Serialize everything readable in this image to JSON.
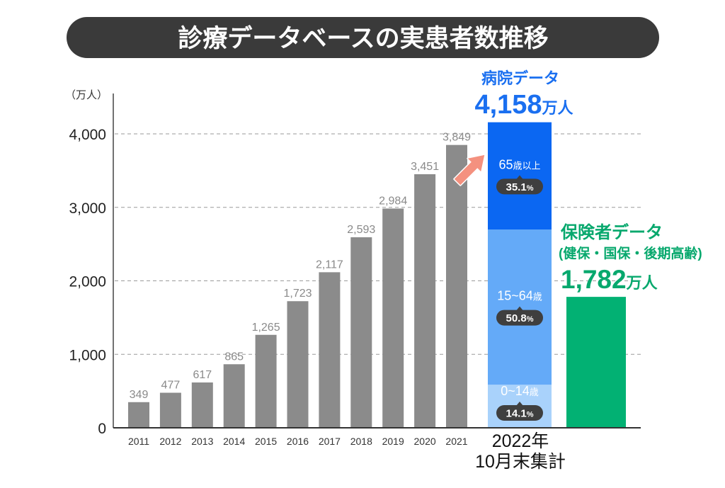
{
  "colors": {
    "title_bg": "#3a3a3a",
    "gray_bar": "#8b8b8b",
    "value_label": "#8a8a8a",
    "seg_65plus": "#0b67f2",
    "seg_15_64": "#64aaf8",
    "seg_0_14": "#a9d2fb",
    "hospital_text": "#1a6ff0",
    "insurer_bar": "#02b173",
    "insurer_text": "#07a86d",
    "pill": "#3f3f3f",
    "arrow": "#f4917f"
  },
  "chart_data": {
    "type": "bar",
    "title": "診療データベースの実患者数推移",
    "ylabel": "（万人）",
    "ylim": [
      0,
      4550
    ],
    "yticks": [
      0,
      1000,
      2000,
      3000,
      4000
    ],
    "ytick_labels": [
      "0",
      "1,000",
      "2,000",
      "3,000",
      "4,000"
    ],
    "grid": true,
    "categories": [
      "2011",
      "2012",
      "2013",
      "2014",
      "2015",
      "2016",
      "2017",
      "2018",
      "2019",
      "2020",
      "2021"
    ],
    "values": [
      349,
      477,
      617,
      865,
      1265,
      1723,
      2117,
      2593,
      2984,
      3451,
      3849
    ],
    "value_labels": [
      "349",
      "477",
      "617",
      "865",
      "1,265",
      "1,723",
      "2,117",
      "2,593",
      "2,984",
      "3,451",
      "3,849"
    ],
    "hospital": {
      "name": "病院データ",
      "total": 4158,
      "total_label": "4,158",
      "unit": "万人",
      "period_line1": "2022年",
      "period_line2": "10月末集計",
      "segments": [
        {
          "age": "65",
          "age_suffix": "歳以上",
          "share": 35.1,
          "share_label": "35.1",
          "percent_sign": "%"
        },
        {
          "age": "15~64",
          "age_suffix": "歳",
          "share": 50.8,
          "share_label": "50.8",
          "percent_sign": "%"
        },
        {
          "age": "0~14",
          "age_suffix": "歳",
          "share": 14.1,
          "share_label": "14.1",
          "percent_sign": "%"
        }
      ]
    },
    "insurer": {
      "name": "保険者データ",
      "subname": "(健保・国保・後期高齢)",
      "total": 1782,
      "total_label": "1,782",
      "unit": "万人"
    }
  }
}
